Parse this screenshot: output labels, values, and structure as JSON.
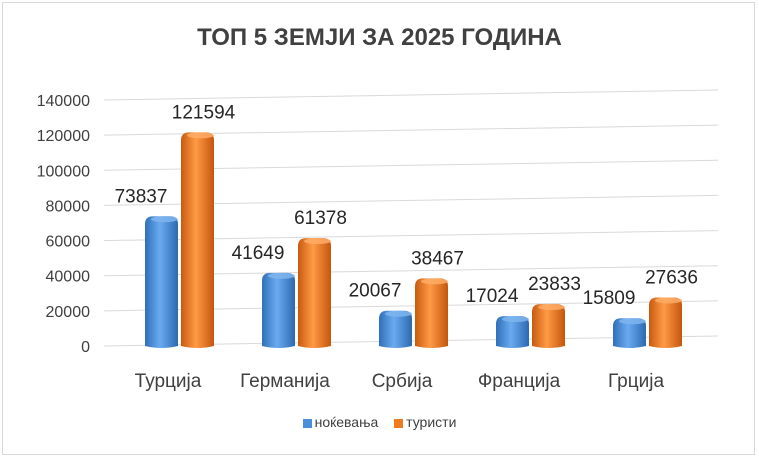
{
  "chart_data": {
    "type": "bar",
    "title": "ТОП 5 ЗЕМЈИ ЗА 2025 ГОДИНА",
    "categories": [
      "Турција",
      "Германија",
      "Србија",
      "Франција",
      "Грција"
    ],
    "series": [
      {
        "name": "ноќевања",
        "color": "#4a8fd9",
        "values": [
          73837,
          41649,
          20067,
          17024,
          15809
        ]
      },
      {
        "name": "туристи",
        "color": "#f07a1e",
        "values": [
          121594,
          61378,
          38467,
          23833,
          27636
        ]
      }
    ],
    "yticks": [
      "0",
      "20000",
      "40000",
      "60000",
      "80000",
      "100000",
      "120000",
      "140000"
    ],
    "ylim": [
      0,
      140000
    ],
    "grid": true,
    "legend": "bottom"
  }
}
